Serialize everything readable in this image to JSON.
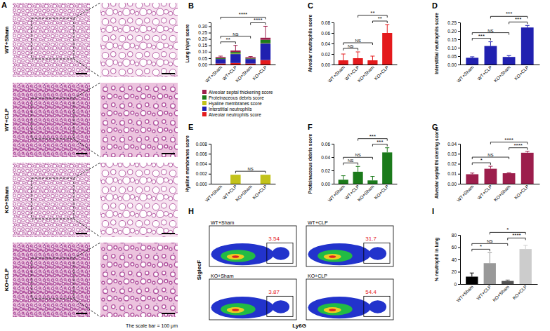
{
  "histology": {
    "panel_label": "A",
    "rows": [
      "WT+Sham",
      "WT+CLP",
      "KO+Sham",
      "KO+CLP"
    ],
    "note": "The scale bar = 100 μm"
  },
  "chart_data": [
    {
      "type": "bar",
      "stacked": true,
      "panel_label": "B",
      "y_label": "Lung injury score",
      "categories": [
        "WT+Sham",
        "WT+CLP",
        "KO+Sham",
        "KO+CLP"
      ],
      "ylim": [
        0,
        0.33
      ],
      "yticks": [
        {
          "value": 0,
          "label": "0.00"
        },
        {
          "value": 0.05,
          "label": "0.05"
        },
        {
          "value": 0.1,
          "label": "0.10"
        },
        {
          "value": 0.15,
          "label": "0.15"
        },
        {
          "value": 0.2,
          "label": "0.20"
        },
        {
          "value": 0.25,
          "label": "0.25"
        },
        {
          "value": 0.3,
          "label": "0.30"
        }
      ],
      "legend": "bottom",
      "series": [
        {
          "name": "Alveolar neutrophils score",
          "color": "#e41a1c",
          "values": [
            0.008,
            0.012,
            0.008,
            0.035
          ]
        },
        {
          "name": "Interstitial neutrophils",
          "color": "#2020b0",
          "values": [
            0.035,
            0.07,
            0.035,
            0.13
          ]
        },
        {
          "name": "Hyaline membranes score",
          "color": "#c2c21a",
          "values": [
            0,
            0.004,
            0,
            0.004
          ]
        },
        {
          "name": "Proteinaceous debris score",
          "color": "#1b7a1b",
          "values": [
            0.006,
            0.012,
            0.005,
            0.025
          ]
        },
        {
          "name": "Alveolar septal thickening score",
          "color": "#9c1e4c",
          "values": [
            0.009,
            0.012,
            0.009,
            0.016
          ],
          "errors": [
            0.008,
            0.04,
            0.006,
            0.09
          ]
        }
      ],
      "comparisons": [
        {
          "from": 0,
          "to": 1,
          "label": "**"
        },
        {
          "from": 0,
          "to": 2,
          "label": "NS"
        },
        {
          "from": 2,
          "to": 3,
          "label": "****"
        },
        {
          "from": 0,
          "to": 3,
          "label": "****"
        }
      ]
    },
    {
      "type": "bar",
      "panel_label": "C",
      "y_label": "Alveolar neutrophils score",
      "categories": [
        "WT+Sham",
        "WT+CLP",
        "KO+Sham",
        "KO+CLP"
      ],
      "ylim": [
        0,
        0.08
      ],
      "yticks": [
        {
          "value": 0,
          "label": "0.00"
        },
        {
          "value": 0.02,
          "label": "0.02"
        },
        {
          "value": 0.04,
          "label": "0.04"
        },
        {
          "value": 0.06,
          "label": "0.06"
        },
        {
          "value": 0.08,
          "label": "0.08"
        }
      ],
      "color": "#e41a1c",
      "values": [
        0.008,
        0.012,
        0.008,
        0.06
      ],
      "errors": [
        0.012,
        0.012,
        0.008,
        0.016
      ],
      "comparisons": [
        {
          "from": 0,
          "to": 1,
          "label": "NS"
        },
        {
          "from": 0,
          "to": 2,
          "label": "NS"
        },
        {
          "from": 2,
          "to": 3,
          "label": "**"
        },
        {
          "from": 1,
          "to": 3,
          "label": "**"
        }
      ]
    },
    {
      "type": "bar",
      "panel_label": "D",
      "y_label": "Interstitial neutrophils score",
      "categories": [
        "WT+Sham",
        "WT+CLP",
        "KO+Sham",
        "KO+CLP"
      ],
      "ylim": [
        0,
        0.25
      ],
      "yticks": [
        {
          "value": 0,
          "label": "0.00"
        },
        {
          "value": 0.05,
          "label": "0.05"
        },
        {
          "value": 0.1,
          "label": "0.10"
        },
        {
          "value": 0.15,
          "label": "0.15"
        },
        {
          "value": 0.2,
          "label": "0.20"
        },
        {
          "value": 0.25,
          "label": "0.25"
        }
      ],
      "color": "#2020b0",
      "values": [
        0.04,
        0.11,
        0.045,
        0.22
      ],
      "errors": [
        0.006,
        0.025,
        0.008,
        0.012
      ],
      "comparisons": [
        {
          "from": 0,
          "to": 1,
          "label": "***"
        },
        {
          "from": 0,
          "to": 2,
          "label": "NS"
        },
        {
          "from": 2,
          "to": 3,
          "label": "***"
        },
        {
          "from": 1,
          "to": 3,
          "label": "***"
        }
      ]
    },
    {
      "type": "bar",
      "panel_label": "E",
      "y_label": "Hyaline membranes score",
      "categories": [
        "WT+Sham",
        "WT+CLP",
        "KO+Sham",
        "KO+CLP"
      ],
      "ylim": [
        0,
        0.008
      ],
      "yticks": [
        {
          "value": 0,
          "label": "0.000"
        },
        {
          "value": 0.002,
          "label": "0.002"
        },
        {
          "value": 0.004,
          "label": "0.004"
        },
        {
          "value": 0.006,
          "label": "0.006"
        },
        {
          "value": 0.008,
          "label": "0.008"
        }
      ],
      "color": "#c2c21a",
      "values": [
        0,
        0.0018,
        0,
        0.0018
      ],
      "comparisons": [
        {
          "from": 1,
          "to": 3,
          "label": "NS"
        }
      ]
    },
    {
      "type": "bar",
      "panel_label": "F",
      "y_label": "Proteinaceous debris score",
      "categories": [
        "WT+Sham",
        "WT+CLP",
        "KO+Sham",
        "KO+CLP"
      ],
      "ylim": [
        0,
        0.06
      ],
      "yticks": [
        {
          "value": 0,
          "label": "0.00"
        },
        {
          "value": 0.02,
          "label": "0.02"
        },
        {
          "value": 0.04,
          "label": "0.04"
        },
        {
          "value": 0.06,
          "label": "0.06"
        }
      ],
      "color": "#1b7a1b",
      "values": [
        0.006,
        0.018,
        0.005,
        0.047
      ],
      "errors": [
        0.006,
        0.008,
        0.006,
        0.007
      ],
      "comparisons": [
        {
          "from": 0,
          "to": 1,
          "label": "NS"
        },
        {
          "from": 0,
          "to": 2,
          "label": "NS"
        },
        {
          "from": 2,
          "to": 3,
          "label": "***"
        },
        {
          "from": 1,
          "to": 3,
          "label": "***"
        }
      ]
    },
    {
      "type": "bar",
      "panel_label": "G",
      "y_label": "Alveolar septal thickening score",
      "categories": [
        "WT+Sham",
        "WT+CLP",
        "KO+Sham",
        "KO+CLP"
      ],
      "ylim": [
        0,
        0.04
      ],
      "yticks": [
        {
          "value": 0,
          "label": "0.00"
        },
        {
          "value": 0.01,
          "label": "0.01"
        },
        {
          "value": 0.02,
          "label": "0.02"
        },
        {
          "value": 0.03,
          "label": "0.03"
        },
        {
          "value": 0.04,
          "label": "0.04"
        }
      ],
      "color": "#9c1e4c",
      "values": [
        0.0095,
        0.015,
        0.0105,
        0.031
      ],
      "errors": [
        0.0012,
        0.0025,
        0.0005,
        0.0015
      ],
      "comparisons": [
        {
          "from": 0,
          "to": 1,
          "label": "*"
        },
        {
          "from": 0,
          "to": 2,
          "label": "NS"
        },
        {
          "from": 2,
          "to": 3,
          "label": "****"
        },
        {
          "from": 1,
          "to": 3,
          "label": "****"
        }
      ]
    },
    {
      "type": "gate_plot",
      "panel_label": "H",
      "x_label": "Ly6G",
      "y_label": "SiglecF",
      "gates": [
        {
          "label": "WT+Sham",
          "value": 3.54
        },
        {
          "label": "WT+CLP",
          "value": 31.7
        },
        {
          "label": "KO+Sham",
          "value": 3.87
        },
        {
          "label": "KO+CLP",
          "value": 54.4
        }
      ]
    },
    {
      "type": "bar",
      "panel_label": "I",
      "y_label": "% neutrophil in lung",
      "categories": [
        "WT+Sham",
        "WT+CLP",
        "KO+Sham",
        "KO+CLP"
      ],
      "ylim": [
        0,
        80
      ],
      "yticks": [
        0,
        20,
        40,
        60,
        80
      ],
      "colors": [
        "#000000",
        "#999999",
        "#555555",
        "#cccccc"
      ],
      "values": [
        12,
        34,
        5,
        57
      ],
      "errors": [
        6,
        17,
        1.5,
        6
      ],
      "comparisons": [
        {
          "from": 0,
          "to": 1,
          "label": "*"
        },
        {
          "from": 0,
          "to": 2,
          "label": "NS"
        },
        {
          "from": 2,
          "to": 3,
          "label": "****"
        },
        {
          "from": 1,
          "to": 3,
          "label": "*"
        }
      ]
    }
  ]
}
